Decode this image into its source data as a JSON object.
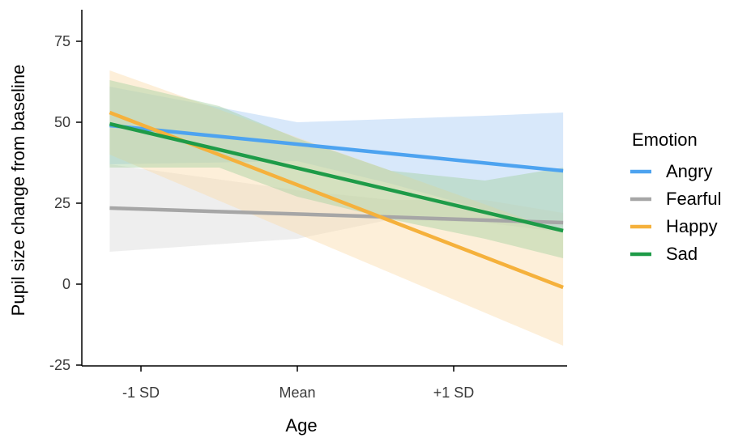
{
  "chart_data": {
    "type": "line",
    "title": "",
    "xlabel": "Age",
    "ylabel": "Pupil size change from baseline",
    "x_ticks": [
      {
        "value": -1,
        "label": "-1 SD"
      },
      {
        "value": 0,
        "label": "Mean"
      },
      {
        "value": 1,
        "label": "+1 SD"
      }
    ],
    "y_ticks": [
      {
        "value": 75,
        "label": "75"
      },
      {
        "value": 50,
        "label": "50"
      },
      {
        "value": 25,
        "label": "25"
      },
      {
        "value": 0,
        "label": "0"
      },
      {
        "value": -25,
        "label": "-25"
      }
    ],
    "xlim": [
      -1.4,
      1.6
    ],
    "ylim": [
      -25,
      85
    ],
    "x_range": [
      -1.2,
      1.7
    ],
    "grid": false,
    "legend": {
      "title": "Emotion",
      "position": "right"
    },
    "series": [
      {
        "name": "Angry",
        "color": "#4da3f0",
        "band_color": "#a8cdf5",
        "x": [
          -1.2,
          1.7
        ],
        "y": [
          49,
          35
        ],
        "band": {
          "x": [
            -1.2,
            0,
            0.6,
            1.2,
            1.7
          ],
          "lower": [
            37,
            38,
            31,
            23,
            17
          ],
          "upper": [
            61,
            50,
            51,
            52,
            53
          ]
        }
      },
      {
        "name": "Fearful",
        "color": "#a6a6a6",
        "band_color": "#d9d9d9",
        "x": [
          -1.2,
          1.7
        ],
        "y": [
          23.5,
          19
        ],
        "band": {
          "x": [
            -1.2,
            0,
            0.6,
            1.2,
            1.7
          ],
          "lower": [
            10,
            14,
            20,
            19,
            16
          ],
          "upper": [
            37,
            29,
            26,
            26,
            22
          ]
        }
      },
      {
        "name": "Happy",
        "color": "#f5b13c",
        "band_color": "#fbdcaa",
        "x": [
          -1.2,
          1.7
        ],
        "y": [
          53,
          -1
        ]
      },
      {
        "name": "Sad",
        "color": "#1e9b48",
        "band_color": "#a3d0a0",
        "x": [
          -1.2,
          1.7
        ],
        "y": [
          49.5,
          16.5
        ],
        "band": {
          "x": [
            -1.2,
            -0.5,
            0,
            0.6,
            1.2,
            1.7
          ],
          "lower": [
            36,
            36,
            27,
            20,
            14,
            8
          ],
          "upper": [
            63,
            55,
            45,
            35,
            32,
            36
          ]
        }
      }
    ]
  }
}
